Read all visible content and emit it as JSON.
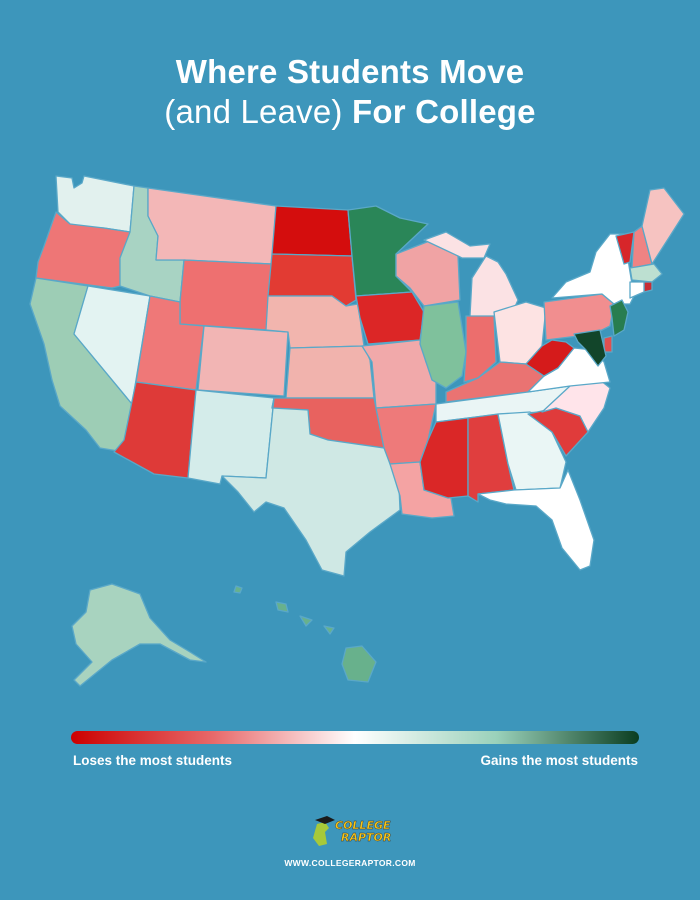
{
  "header": {
    "title_line1": "Where Students Move",
    "title_line2_light": "(and Leave)",
    "title_line2_bold": "For College"
  },
  "legend": {
    "left_label": "Loses the most students",
    "right_label": "Gains the most students",
    "gradient_colors": [
      "#cc0000",
      "#e8696a",
      "#ffffff",
      "#9ad1ba",
      "#0a3d20"
    ]
  },
  "logo": {
    "wordmark_line1": "COLLEGE",
    "wordmark_line2": "RAPTOR",
    "colors": {
      "text": "#f7c619",
      "dino": "#a7c93a",
      "cap": "#1a1a1a"
    }
  },
  "footer": {
    "url": "WWW.COLLEGERAPTOR.COM"
  },
  "map_regions": {
    "WA": "#e2f1ee",
    "OR": "#ee7676",
    "CA": "#9dcdb5",
    "NV": "#e3f3f2",
    "ID": "#a8d3c3",
    "MT": "#f3b7b7",
    "WY": "#ee7070",
    "UT": "#ef7878",
    "AZ": "#de3a38",
    "CO": "#f2b5b4",
    "NM": "#d4ecea",
    "ND": "#d40d0d",
    "SD": "#e23b33",
    "NE": "#f2b5ae",
    "KS": "#f1b3ad",
    "OK": "#e8625f",
    "TX": "#cfe8e4",
    "MN": "#2a8658",
    "IA": "#dc2626",
    "MO": "#f1a9aa",
    "AR": "#ee7a7a",
    "LA": "#f4a3a3",
    "WI": "#f0a3a4",
    "IL": "#7fc19c",
    "MI": "#fbe2e4",
    "IN": "#ec6e6d",
    "OH": "#fde3e3",
    "KY": "#ea7372",
    "TN": "#eaf5f5",
    "MS": "#da2727",
    "AL": "#e03e3e",
    "GA": "#eaf6f5",
    "FL": "#ffffff",
    "SC": "#e03b3b",
    "NC": "#ffe4ea",
    "VA": "#ffffff",
    "WV": "#d51b1b",
    "PA": "#f18e8f",
    "NY": "#ffffff",
    "VT": "#d7262a",
    "NH": "#ef8383",
    "ME": "#f6c3c1",
    "MA": "#bde0d1",
    "RI": "#c72d35",
    "CT": "#ffffff",
    "NJ": "#287d4f",
    "DE": "#e05050",
    "MD": "#12452a",
    "AK": "#a8d3bf",
    "HI": "#68b18c"
  }
}
